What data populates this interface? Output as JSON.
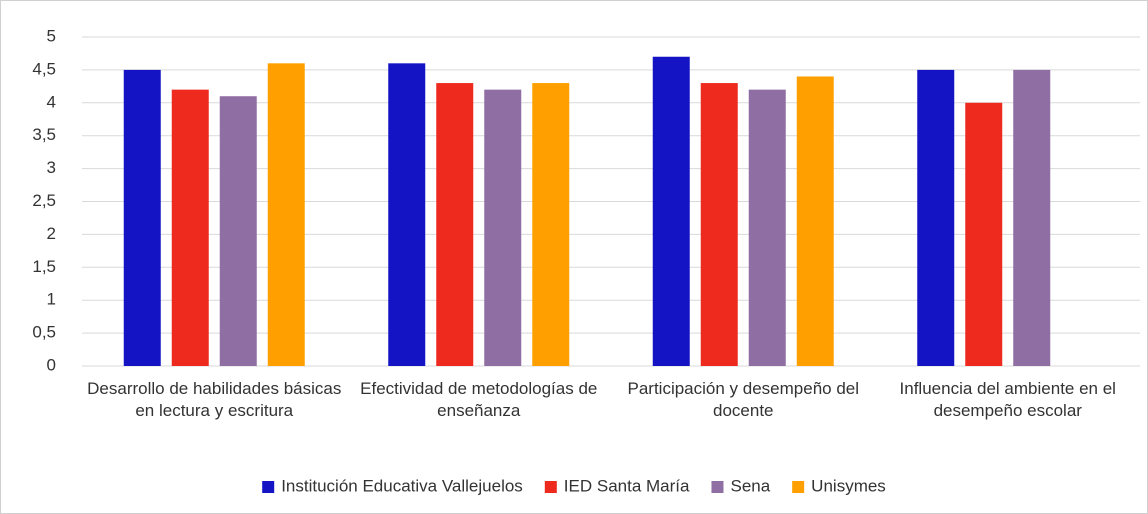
{
  "chart_data": {
    "type": "bar",
    "categories": [
      "Desarrollo de habilidades básicas en lectura y escritura",
      "Efectividad de metodologías de enseñanza",
      "Participación y desempeño del docente",
      "Influencia del ambiente en el desempeño escolar"
    ],
    "series": [
      {
        "name": "Institución Educativa Vallejuelos",
        "color": "#1414c4",
        "values": [
          4.5,
          4.6,
          4.7,
          4.5
        ]
      },
      {
        "name": "IED Santa María",
        "color": "#ee2a1e",
        "values": [
          4.2,
          4.3,
          4.3,
          4.0
        ]
      },
      {
        "name": "Sena",
        "color": "#8f6ea4",
        "values": [
          4.1,
          4.2,
          4.2,
          4.5
        ]
      },
      {
        "name": "Unisymes",
        "color": "#ffa000",
        "values": [
          4.6,
          4.3,
          4.4,
          null
        ]
      }
    ],
    "ylim": [
      0,
      5
    ],
    "yticks": [
      0,
      {
        "value": 0.5,
        "label": "0,5"
      },
      1,
      {
        "value": 1.5,
        "label": "1,5"
      },
      2,
      {
        "value": 2.5,
        "label": "2,5"
      },
      3,
      {
        "value": 3.5,
        "label": "3,5"
      },
      4,
      {
        "value": 4.5,
        "label": "4,5"
      },
      5
    ],
    "grid": true,
    "legend": "bottom"
  }
}
